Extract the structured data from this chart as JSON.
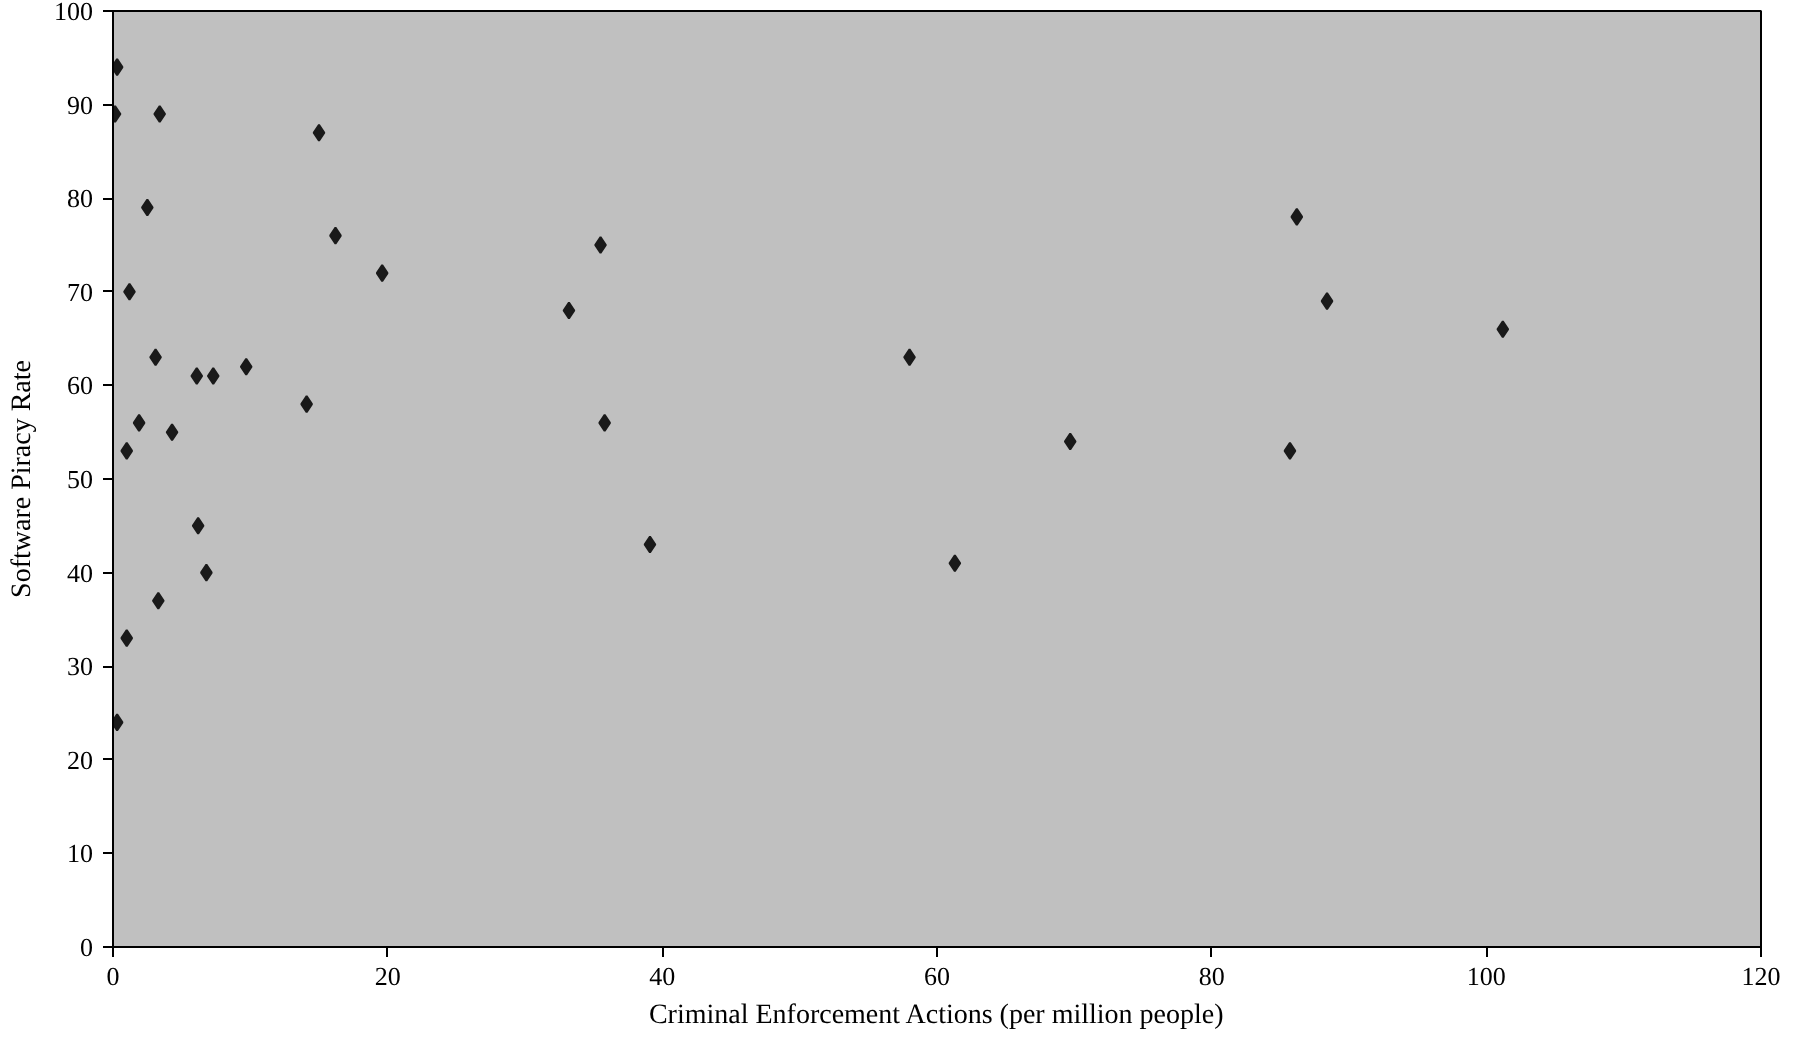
{
  "chart_data": {
    "type": "scatter",
    "xlabel": "Criminal Enforcement Actions (per million people)",
    "ylabel": "Software Piracy Rate",
    "x": [
      0.3,
      0.15,
      0.3,
      1.2,
      1.0,
      1.0,
      1.9,
      2.5,
      3.4,
      3.1,
      3.3,
      4.3,
      6.1,
      6.2,
      7.3,
      6.8,
      9.7,
      14.1,
      15.0,
      16.2,
      19.6,
      33.2,
      35.5,
      35.8,
      39.1,
      58.0,
      61.3,
      69.7,
      86.2,
      85.7,
      88.4,
      101.2
    ],
    "values": [
      94,
      89,
      24,
      70,
      53,
      33,
      56,
      79,
      89,
      63,
      37,
      55,
      61,
      45,
      61,
      40,
      62,
      58,
      87,
      76,
      72,
      68,
      75,
      56,
      43,
      63,
      41,
      54,
      78,
      53,
      69,
      66
    ],
    "color": "#1a1a1a",
    "marker": "diamond",
    "grid": false,
    "xlim": [
      0,
      120
    ],
    "xticks": [
      0,
      20,
      40,
      60,
      80,
      100,
      120
    ],
    "ylim": [
      0,
      100
    ],
    "yticks": [
      0,
      10,
      20,
      30,
      40,
      50,
      60,
      70,
      80,
      90,
      100
    ]
  }
}
